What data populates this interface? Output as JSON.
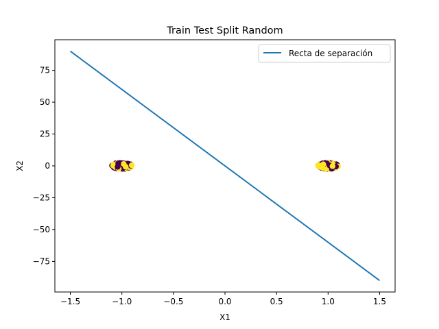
{
  "chart_data": {
    "type": "scatter",
    "title": "Train Test Split Random",
    "xlabel": "X1",
    "ylabel": "X2",
    "xlim": [
      -1.65,
      1.65
    ],
    "ylim": [
      -99,
      99
    ],
    "xticks": [
      -1.5,
      -1.0,
      -0.5,
      0.0,
      0.5,
      1.0,
      1.5
    ],
    "xtick_labels": [
      "−1.5",
      "−1.0",
      "−0.5",
      "0.0",
      "0.5",
      "1.0",
      "1.5"
    ],
    "yticks": [
      -75,
      -50,
      -25,
      0,
      25,
      50,
      75
    ],
    "ytick_labels": [
      "−75",
      "−50",
      "−25",
      "0",
      "25",
      "50",
      "75"
    ],
    "grid": false,
    "legend": {
      "placement": "top-right",
      "entries": [
        "Recta de separación"
      ]
    },
    "line": {
      "name": "Recta de separación",
      "color": "#1f77b4",
      "x": [
        -1.5,
        1.5
      ],
      "y": [
        90,
        -90
      ]
    },
    "clusters": [
      {
        "center_x": -1.0,
        "center_y": 0.0,
        "spread_x": 0.1,
        "spread_y": 2.5,
        "colors": [
          "#440154",
          "#fde725"
        ]
      },
      {
        "center_x": 1.0,
        "center_y": 0.0,
        "spread_x": 0.1,
        "spread_y": 2.5,
        "colors": [
          "#440154",
          "#fde725"
        ]
      }
    ]
  }
}
